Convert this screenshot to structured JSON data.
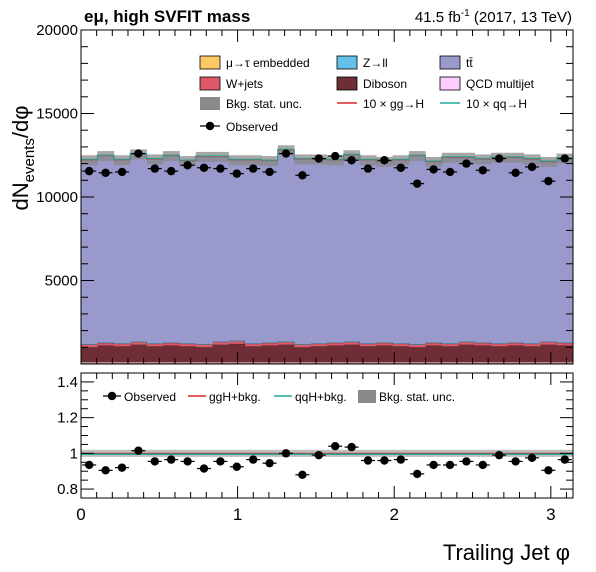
{
  "header": {
    "channel": "eμ, high SVFIT mass",
    "lumi_value": "41.5 fb",
    "lumi_exp": "-1",
    "lumi_rest": " (2017, 13 TeV)"
  },
  "colors": {
    "embedded": "#fdc966",
    "wjets": "#de5a6a",
    "ttbar": "#9999cc",
    "zll": "#64c0e8",
    "diboson": "#6f2d35",
    "qcd": "#fdcdfd",
    "unc": "#8a8a8a",
    "ggH": "#d62728",
    "qqH": "#21a99a",
    "observed": "#000000"
  },
  "chart_data": [
    {
      "type": "area",
      "stacked": true,
      "ylabel": "dN",
      "ylabel_sub": "events",
      "ylabel_tail": "/dφ",
      "xlim": [
        0,
        3.1416
      ],
      "ylim": [
        0,
        20000
      ],
      "yticks": [
        5000,
        10000,
        15000,
        20000
      ],
      "ytick_labels": [
        "5000",
        "10000",
        "15000",
        "20000"
      ],
      "nbins": 30,
      "legend": {
        "placement": "top-right",
        "entries": [
          {
            "label": "μ→τ embedded",
            "key": "embedded",
            "style": "box"
          },
          {
            "label": "Z→ll",
            "key": "zll",
            "style": "box"
          },
          {
            "label": "tt̄",
            "key": "ttbar",
            "style": "box"
          },
          {
            "label": "W+jets",
            "key": "wjets",
            "style": "box"
          },
          {
            "label": "Diboson",
            "key": "diboson",
            "style": "box"
          },
          {
            "label": "QCD multijet",
            "key": "qcd",
            "style": "box"
          },
          {
            "label": "Bkg. stat. unc.",
            "key": "unc",
            "style": "box"
          },
          {
            "label": "10 × gg→H",
            "key": "ggH",
            "style": "line"
          },
          {
            "label": "10 × qq→H",
            "key": "qqH",
            "style": "line"
          },
          {
            "label": "Observed",
            "key": "observed",
            "style": "marker"
          }
        ]
      },
      "series": [
        {
          "name": "μ→τ embedded",
          "key": "embedded",
          "values": [
            60,
            60,
            60,
            60,
            60,
            60,
            60,
            60,
            60,
            60,
            60,
            60,
            60,
            60,
            60,
            60,
            60,
            60,
            60,
            60,
            60,
            60,
            60,
            60,
            60,
            60,
            60,
            60,
            60,
            60
          ]
        },
        {
          "name": "QCD multijet",
          "key": "qcd",
          "values": [
            50,
            50,
            50,
            50,
            50,
            50,
            50,
            50,
            50,
            50,
            50,
            50,
            50,
            50,
            50,
            50,
            50,
            50,
            50,
            50,
            50,
            50,
            50,
            50,
            50,
            50,
            50,
            50,
            50,
            50
          ]
        },
        {
          "name": "Diboson",
          "key": "diboson",
          "values": [
            900,
            1000,
            950,
            1050,
            950,
            1000,
            950,
            900,
            1050,
            1100,
            950,
            1000,
            1050,
            900,
            950,
            1000,
            1050,
            950,
            1000,
            950,
            900,
            1000,
            950,
            1050,
            1000,
            950,
            1000,
            950,
            1050,
            1000
          ]
        },
        {
          "name": "W+jets",
          "key": "wjets",
          "values": [
            150,
            150,
            150,
            150,
            150,
            150,
            150,
            150,
            150,
            150,
            150,
            150,
            150,
            150,
            150,
            150,
            150,
            150,
            150,
            150,
            150,
            150,
            150,
            150,
            150,
            150,
            150,
            150,
            150,
            150
          ]
        },
        {
          "name": "Z→ll",
          "key": "zll",
          "values": [
            40,
            40,
            40,
            40,
            40,
            40,
            40,
            40,
            40,
            40,
            40,
            40,
            40,
            40,
            40,
            40,
            40,
            40,
            40,
            40,
            40,
            40,
            40,
            40,
            40,
            40,
            40,
            40,
            40,
            40
          ]
        },
        {
          "name": "tt̄",
          "key": "ttbar",
          "values": [
            11000,
            11150,
            10950,
            11200,
            11000,
            11150,
            10900,
            11200,
            11050,
            10800,
            10950,
            10850,
            11450,
            11050,
            11000,
            10900,
            11150,
            10950,
            10800,
            10950,
            11250,
            10800,
            11100,
            11000,
            10950,
            11100,
            11050,
            11000,
            10750,
            11000
          ]
        }
      ],
      "observed": [
        11550,
        11450,
        11500,
        12600,
        11700,
        11550,
        11900,
        11750,
        11700,
        11400,
        11700,
        11500,
        12600,
        11300,
        12300,
        12450,
        12200,
        11700,
        12200,
        11750,
        10800,
        11650,
        11500,
        12000,
        11600,
        12300,
        11450,
        11800,
        10950,
        12300
      ],
      "bkg_unc": 300
    },
    {
      "type": "scatter",
      "ylim": [
        0.75,
        1.45
      ],
      "yticks": [
        0.8,
        1,
        1.2,
        1.4
      ],
      "ytick_labels": [
        "0.8",
        "1",
        "1.2",
        "1.4"
      ],
      "xlabel": "Trailing Jet  φ",
      "xticks": [
        0,
        1,
        2,
        3
      ],
      "xtick_labels": [
        "0",
        "1",
        "2",
        "3"
      ],
      "legend": {
        "placement": "top",
        "entries": [
          {
            "label": "Observed",
            "key": "observed",
            "style": "marker"
          },
          {
            "label": "ggH+bkg.",
            "key": "ggH",
            "style": "line"
          },
          {
            "label": "qqH+bkg.",
            "key": "qqH",
            "style": "line"
          },
          {
            "label": "Bkg. stat. unc.",
            "key": "unc",
            "style": "box"
          }
        ]
      },
      "ratio": [
        0.935,
        0.905,
        0.92,
        1.015,
        0.955,
        0.965,
        0.955,
        0.915,
        0.955,
        0.925,
        0.965,
        0.945,
        1.0,
        0.88,
        0.99,
        1.04,
        1.035,
        0.96,
        0.96,
        0.965,
        0.885,
        0.935,
        0.935,
        0.955,
        0.935,
        0.99,
        0.955,
        0.975,
        0.905,
        0.965
      ],
      "ratio_err": 0.015,
      "ggH_ratio": 1.0,
      "qqH_ratio": 0.995,
      "unc_band": 0.02
    }
  ]
}
